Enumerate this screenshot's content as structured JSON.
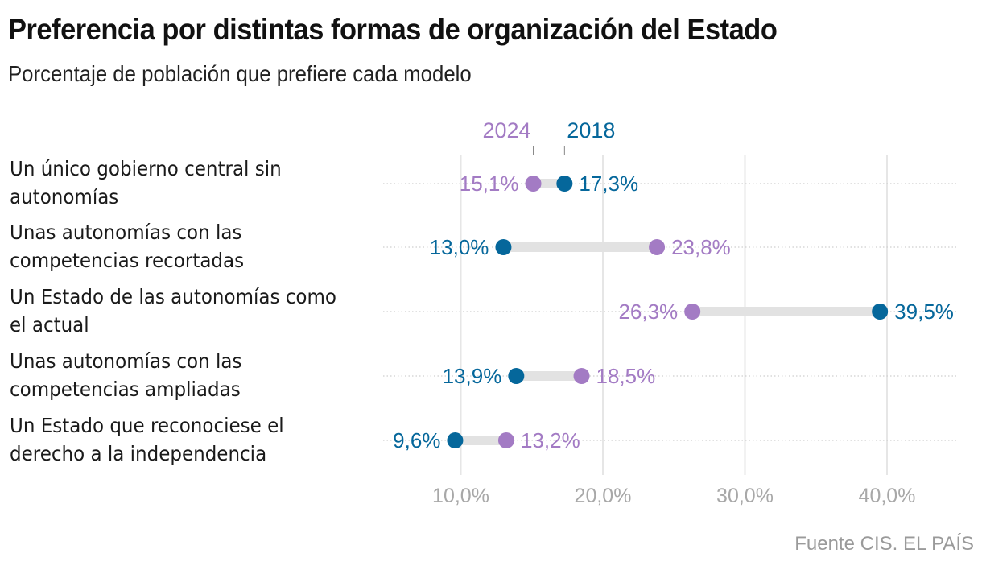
{
  "title": "Preferencia por distintas formas de organización del Estado",
  "subtitle": "Porcentaje de población que prefiere cada modelo",
  "source": "Fuente CIS. EL PAÍS",
  "colors": {
    "series_2024": "#a37bc4",
    "series_2018": "#05679b",
    "connector": "#e2e2e2",
    "grid": "#e6e6e6",
    "tick_label": "#a8a8a8"
  },
  "chart_data": {
    "type": "dumbbell",
    "title": "Preferencia por distintas formas de organización del Estado",
    "subtitle": "Porcentaje de población que prefiere cada modelo",
    "xlabel": "",
    "ylabel": "",
    "xlim": [
      0,
      45
    ],
    "grid": true,
    "legend_placement": "top",
    "x_ticks": [
      10,
      20,
      30,
      40
    ],
    "x_tick_labels": [
      "10,0%",
      "20,0%",
      "30,0%",
      "40,0%"
    ],
    "categories": [
      "Un único gobierno central sin autonomías",
      "Unas autonomías con las competencias recortadas",
      "Un Estado de las autonomías como el actual",
      "Unas autonomías con las competencias ampliadas",
      "Un Estado que reconociese el derecho a la independencia"
    ],
    "category_lines": [
      [
        "Un único gobierno central sin",
        "autonomías"
      ],
      [
        "Unas autonomías con las",
        "competencias recortadas"
      ],
      [
        "Un Estado de las autonomías como",
        "el actual"
      ],
      [
        "Unas autonomías con las",
        "competencias ampliadas"
      ],
      [
        "Un Estado que reconociese el",
        "derecho a la independencia"
      ]
    ],
    "series": [
      {
        "name": "2024",
        "values": [
          15.1,
          23.8,
          26.3,
          18.5,
          13.2
        ],
        "labels": [
          "15,1%",
          "23,8%",
          "26,3%",
          "18,5%",
          "13,2%"
        ]
      },
      {
        "name": "2018",
        "values": [
          17.3,
          13.0,
          39.5,
          13.9,
          9.6
        ],
        "labels": [
          "17,3%",
          "13,0%",
          "39,5%",
          "13,9%",
          "9,6%"
        ]
      }
    ]
  }
}
